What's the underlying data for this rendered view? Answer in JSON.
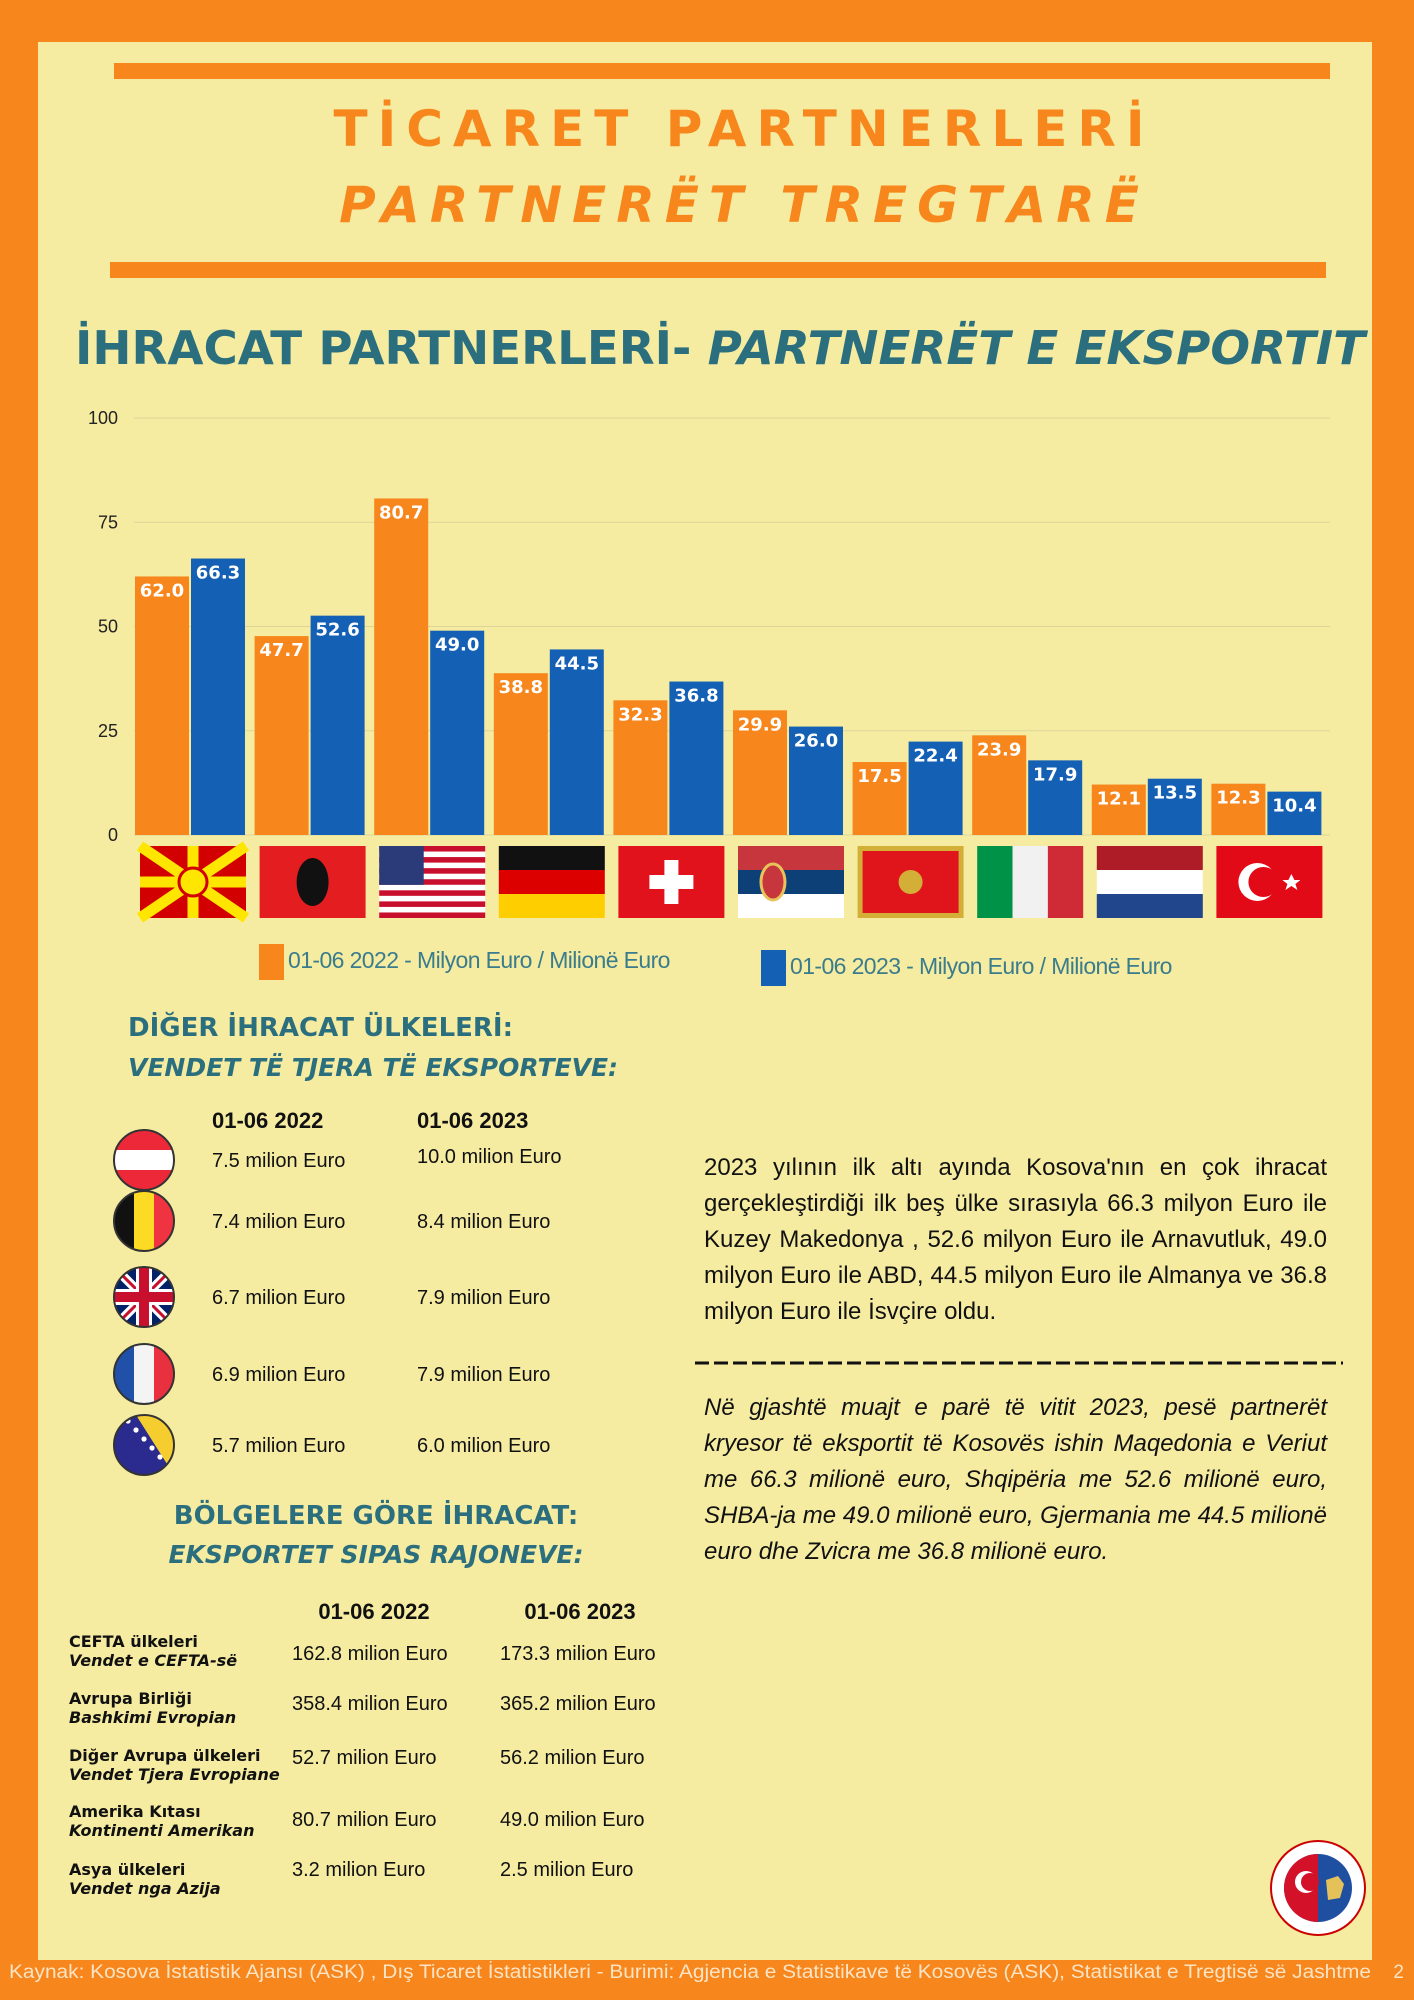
{
  "header": {
    "title": "TİCARET PARTNERLERİ",
    "subtitle": "PARTNERËT TREGTARË"
  },
  "chart_data": {
    "type": "bar",
    "title": [
      "İHRACAT PARTNERLERİ- ",
      "PARTNERËT E EKSPORTIT"
    ],
    "categories": [
      null,
      null,
      null,
      null,
      null,
      null,
      null,
      null,
      null,
      null
    ],
    "series": [
      {
        "name": "01-06 2022 - Milyon Euro / Milionë Euro",
        "color": "#f7861c",
        "values": [
          62.0,
          47.7,
          80.7,
          38.8,
          32.3,
          29.9,
          17.5,
          23.9,
          12.1,
          12.3
        ],
        "value_labels": [
          "62.0",
          "47.7",
          "80.7",
          "38.8",
          "32.3",
          "29.9",
          "17.5",
          "23.9",
          "12.1",
          "12.3"
        ]
      },
      {
        "name": "01-06 2023 - Milyon Euro / Milionë Euro",
        "color": "#1460b4",
        "values": [
          66.3,
          52.6,
          49.0,
          44.5,
          36.8,
          26.0,
          22.4,
          17.9,
          13.5,
          10.4
        ],
        "value_labels": [
          "66.3",
          "52.6",
          "49.0",
          "44.5",
          "36.8",
          "26.0",
          "22.4",
          "17.9",
          "13.5",
          "10.4"
        ]
      }
    ],
    "ylim": [
      0,
      100
    ],
    "yticks": [
      0,
      25,
      50,
      75,
      100
    ],
    "grid": true
  },
  "other_countries": {
    "title": "DİĞER İHRACAT ÜLKELERİ:",
    "subtitle": "VENDET TË TJERA TË EKSPORTEVE:",
    "columns": [
      "01-06 2022",
      "01-06 2023"
    ],
    "rows": [
      [
        "7.5 milion Euro",
        "10.0 milion Euro"
      ],
      [
        "7.4 milion Euro",
        "8.4 milion Euro"
      ],
      [
        "6.7 milion Euro",
        "7.9 milion Euro"
      ],
      [
        "6.9 milion Euro",
        "7.9 milion Euro"
      ],
      [
        "5.7 milion Euro",
        "6.0 milion Euro"
      ]
    ]
  },
  "regions": {
    "title": "BÖLGELERE GÖRE İHRACAT:",
    "subtitle": "EKSPORTET SIPAS RAJONEVE:",
    "columns": [
      "01-06 2022",
      "01-06 2023"
    ],
    "rows": [
      {
        "name": "CEFTA ülkeleri",
        "name_alt": "Vendet e CEFTA-së",
        "values": [
          "162.8 milion Euro",
          "173.3 milion Euro"
        ]
      },
      {
        "name": "Avrupa Birliği",
        "name_alt": "Bashkimi Evropian",
        "values": [
          "358.4 milion Euro",
          "365.2 milion Euro"
        ]
      },
      {
        "name": "Diğer Avrupa ülkeleri",
        "name_alt": "Vendet Tjera Evropiane",
        "values": [
          "52.7 milion Euro",
          "56.2 milion Euro"
        ]
      },
      {
        "name": "Amerika Kıtası",
        "name_alt": "Kontinenti Amerikan",
        "values": [
          "80.7 milion Euro",
          "49.0 milion Euro"
        ]
      },
      {
        "name": "Asya ülkeleri",
        "name_alt": "Vendet nga Azija",
        "values": [
          "3.2 milion Euro",
          "2.5 milion Euro"
        ]
      }
    ]
  },
  "summary": {
    "turkish": "2023 yılının ilk altı ayında Kosova'nın en çok ihracat gerçekleştirdiği ilk beş ülke sırasıyla 66.3 milyon Euro ile Kuzey Makedonya , 52.6 milyon Euro ile Arnavutluk, 49.0 milyon Euro ile ABD,  44.5 milyon Euro ile Almanya ve 36.8 milyon Euro ile İsvçire oldu.",
    "albanian": "Në gjashtë muajt e parë të vitit 2023,  pesë partnerët kryesor të eksportit të Kosovës ishin Maqedonia e Veriut me 66.3 milionë euro, Shqipëria me 52.6 milionë euro,  SHBA-ja me 49.0 milionë euro, Gjermania me 44.5 milionë euro dhe Zvicra me 36.8 milionë euro."
  },
  "footer": {
    "source": "Kaynak: Kosova İstatistik Ajansı (ASK) ,  Dış Ticaret İstatistikleri -   Burimi: Agjencia e Statistikave të Kosovës (ASK), Statistikat e Tregtisë së Jashtme",
    "page": "2"
  }
}
